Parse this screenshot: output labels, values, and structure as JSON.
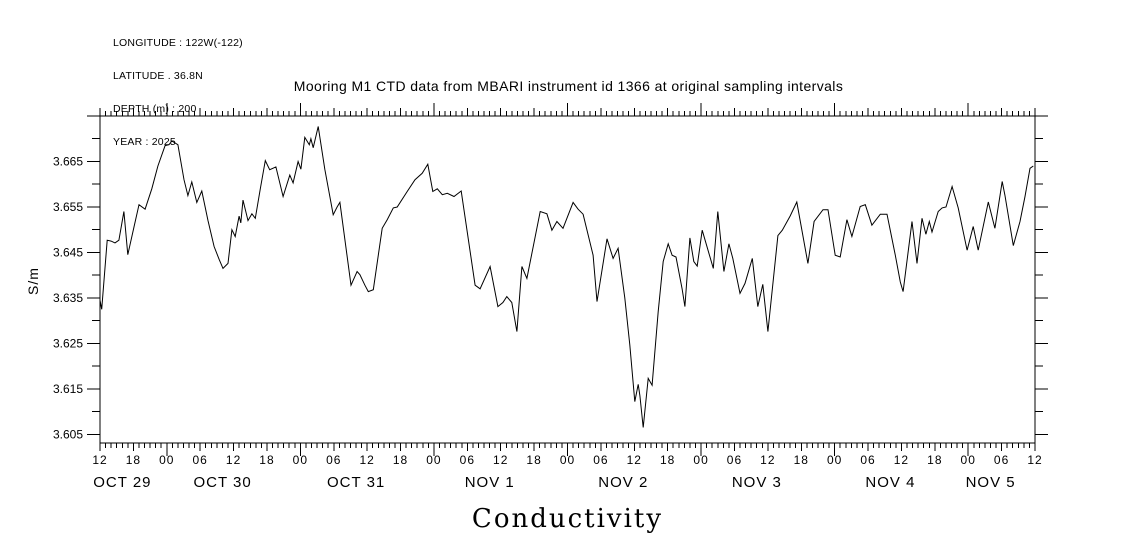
{
  "metadata_block": {
    "lines": [
      "LONGITUDE : 122W(-122)",
      "LATITUDE . 36.8N",
      "DEPTH (m) : 200",
      "YEAR : 2025"
    ]
  },
  "title": "Mooring M1 CTD data from MBARI instrument id 1366 at original sampling intervals",
  "chart_data": {
    "type": "line",
    "title": "Mooring M1 CTD data from MBARI instrument id 1366 at original sampling intervals",
    "xlabel": "Conductivity",
    "ylabel": "S/m",
    "x_unit": "hours since OCT 29 2025 12:00",
    "x_range_hours": [
      0,
      168
    ],
    "x_minor_tick_step_hours": 1,
    "x_hour_label_step_hours": 6,
    "x_hour_tick_labels": [
      "12",
      "18",
      "00",
      "06",
      "12",
      "18",
      "00",
      "06",
      "12",
      "18",
      "00",
      "06",
      "12",
      "18",
      "00",
      "06",
      "12",
      "18",
      "00",
      "06",
      "12",
      "18",
      "00",
      "06",
      "12",
      "18",
      "00",
      "06",
      "12"
    ],
    "date_labels": [
      {
        "label": "OCT 29",
        "center_hour": 6
      },
      {
        "label": "OCT 30",
        "center_hour": 24
      },
      {
        "label": "OCT 31",
        "center_hour": 48
      },
      {
        "label": "NOV  1",
        "center_hour": 72
      },
      {
        "label": "NOV  2",
        "center_hour": 96
      },
      {
        "label": "NOV  3",
        "center_hour": 120
      },
      {
        "label": "NOV  4",
        "center_hour": 144
      },
      {
        "label": "NOV  5",
        "center_hour": 162
      }
    ],
    "ylim": [
      3.6031,
      3.675
    ],
    "y_tick_labels": [
      "3.605",
      "3.615",
      "3.625",
      "3.635",
      "3.645",
      "3.655",
      "3.665"
    ],
    "y_major_tick_step": 0.01,
    "y_minor_tick_step": 0.005,
    "grid": false,
    "legend": "none",
    "series": [
      {
        "name": "conductivity",
        "points": [
          [
            0,
            3.6345
          ],
          [
            0.3,
            3.6325
          ],
          [
            1.3,
            3.6477
          ],
          [
            2,
            3.6475
          ],
          [
            2.7,
            3.6471
          ],
          [
            3.4,
            3.6477
          ],
          [
            4.3,
            3.654
          ],
          [
            5,
            3.6445
          ],
          [
            6.1,
            3.6505
          ],
          [
            7,
            3.6555
          ],
          [
            8.1,
            3.6545
          ],
          [
            9.3,
            3.659
          ],
          [
            10.4,
            3.664
          ],
          [
            11.7,
            3.6685
          ],
          [
            12.4,
            3.6687
          ],
          [
            12.9,
            3.6695
          ],
          [
            14,
            3.6687
          ],
          [
            15.1,
            3.661
          ],
          [
            15.8,
            3.6575
          ],
          [
            16.5,
            3.6605
          ],
          [
            17.4,
            3.656
          ],
          [
            18.3,
            3.6585
          ],
          [
            19.4,
            3.652
          ],
          [
            20.5,
            3.6463
          ],
          [
            21.4,
            3.6435
          ],
          [
            22.1,
            3.6415
          ],
          [
            23,
            3.6426
          ],
          [
            23.7,
            3.65
          ],
          [
            24.3,
            3.6485
          ],
          [
            25,
            3.653
          ],
          [
            25.3,
            3.6515
          ],
          [
            25.7,
            3.6565
          ],
          [
            26.6,
            3.652
          ],
          [
            27.3,
            3.6535
          ],
          [
            27.9,
            3.6525
          ],
          [
            28.8,
            3.659
          ],
          [
            29.7,
            3.6652
          ],
          [
            30.5,
            3.6632
          ],
          [
            31.6,
            3.6638
          ],
          [
            32.9,
            3.6573
          ],
          [
            34.1,
            3.662
          ],
          [
            34.7,
            3.6603
          ],
          [
            35.6,
            3.665
          ],
          [
            36.1,
            3.6633
          ],
          [
            36.8,
            3.6703
          ],
          [
            37.6,
            3.6687
          ],
          [
            37.9,
            3.67
          ],
          [
            38.3,
            3.668
          ],
          [
            39.2,
            3.6727
          ],
          [
            40.4,
            3.6633
          ],
          [
            41.9,
            3.6533
          ],
          [
            42.6,
            3.655
          ],
          [
            43.1,
            3.656
          ],
          [
            45.1,
            3.6378
          ],
          [
            46.2,
            3.6408
          ],
          [
            46.7,
            3.6401
          ],
          [
            47.6,
            3.6378
          ],
          [
            48.2,
            3.6364
          ],
          [
            49.1,
            3.6368
          ],
          [
            50.7,
            3.6503
          ],
          [
            51.6,
            3.6522
          ],
          [
            52.7,
            3.6548
          ],
          [
            53.4,
            3.655
          ],
          [
            55.2,
            3.6584
          ],
          [
            56.6,
            3.661
          ],
          [
            57.9,
            3.6624
          ],
          [
            58.9,
            3.6644
          ],
          [
            59.8,
            3.6584
          ],
          [
            60.6,
            3.659
          ],
          [
            61.5,
            3.6577
          ],
          [
            62.4,
            3.658
          ],
          [
            63.6,
            3.6573
          ],
          [
            64.9,
            3.6585
          ],
          [
            67.4,
            3.6378
          ],
          [
            68.3,
            3.637
          ],
          [
            70.1,
            3.6419
          ],
          [
            71.5,
            3.6331
          ],
          [
            72.4,
            3.634
          ],
          [
            73.1,
            3.6353
          ],
          [
            74,
            3.634
          ],
          [
            74.9,
            3.6276
          ],
          [
            75.8,
            3.6419
          ],
          [
            76.7,
            3.6393
          ],
          [
            79.1,
            3.654
          ],
          [
            80.3,
            3.6535
          ],
          [
            81.2,
            3.6499
          ],
          [
            82.1,
            3.6518
          ],
          [
            83.2,
            3.6503
          ],
          [
            85,
            3.656
          ],
          [
            85.9,
            3.6545
          ],
          [
            86.8,
            3.6534
          ],
          [
            88.6,
            3.6444
          ],
          [
            89.3,
            3.6342
          ],
          [
            91.1,
            3.648
          ],
          [
            92.2,
            3.6437
          ],
          [
            93.1,
            3.6459
          ],
          [
            94.3,
            3.635
          ],
          [
            95.2,
            3.6247
          ],
          [
            96.1,
            3.6122
          ],
          [
            96.7,
            3.616
          ],
          [
            97,
            3.6135
          ],
          [
            97.6,
            3.6065
          ],
          [
            98.5,
            3.6173
          ],
          [
            99.2,
            3.6158
          ],
          [
            100.3,
            3.632
          ],
          [
            101.2,
            3.643
          ],
          [
            102.1,
            3.6469
          ],
          [
            102.8,
            3.6444
          ],
          [
            103.5,
            3.644
          ],
          [
            104.6,
            3.637
          ],
          [
            105.1,
            3.6331
          ],
          [
            106,
            3.6482
          ],
          [
            106.7,
            3.643
          ],
          [
            107.3,
            3.642
          ],
          [
            108.2,
            3.6499
          ],
          [
            110.2,
            3.6415
          ],
          [
            111,
            3.654
          ],
          [
            112.1,
            3.6408
          ],
          [
            113,
            3.6469
          ],
          [
            113.7,
            3.6437
          ],
          [
            115,
            3.636
          ],
          [
            115.9,
            3.6382
          ],
          [
            117.2,
            3.6437
          ],
          [
            118.2,
            3.6331
          ],
          [
            119.1,
            3.638
          ],
          [
            120,
            3.6276
          ],
          [
            121.8,
            3.6487
          ],
          [
            122.6,
            3.6499
          ],
          [
            124,
            3.653
          ],
          [
            125.2,
            3.6561
          ],
          [
            127.2,
            3.6426
          ],
          [
            128.3,
            3.6518
          ],
          [
            129.9,
            3.6544
          ],
          [
            130.8,
            3.6544
          ],
          [
            132.1,
            3.6444
          ],
          [
            133,
            3.644
          ],
          [
            134.2,
            3.6522
          ],
          [
            135.1,
            3.6485
          ],
          [
            136.6,
            3.6551
          ],
          [
            137.5,
            3.6555
          ],
          [
            138.7,
            3.651
          ],
          [
            140.2,
            3.6534
          ],
          [
            141.4,
            3.6534
          ],
          [
            142.9,
            3.6444
          ],
          [
            143.8,
            3.6385
          ],
          [
            144.3,
            3.6364
          ],
          [
            145.9,
            3.6518
          ],
          [
            146.8,
            3.6426
          ],
          [
            147.7,
            3.6525
          ],
          [
            148.4,
            3.649
          ],
          [
            149,
            3.6518
          ],
          [
            149.5,
            3.6495
          ],
          [
            150.6,
            3.654
          ],
          [
            151.3,
            3.6548
          ],
          [
            152,
            3.655
          ],
          [
            153.1,
            3.6595
          ],
          [
            154.2,
            3.6548
          ],
          [
            155.8,
            3.6455
          ],
          [
            156.9,
            3.6507
          ],
          [
            157.8,
            3.6455
          ],
          [
            159.6,
            3.6561
          ],
          [
            160.8,
            3.6503
          ],
          [
            162.1,
            3.6606
          ],
          [
            162.6,
            3.6576
          ],
          [
            164.1,
            3.6465
          ],
          [
            165.3,
            3.6518
          ],
          [
            166.2,
            3.6573
          ],
          [
            167.1,
            3.6635
          ],
          [
            167.7,
            3.664
          ]
        ]
      }
    ]
  }
}
